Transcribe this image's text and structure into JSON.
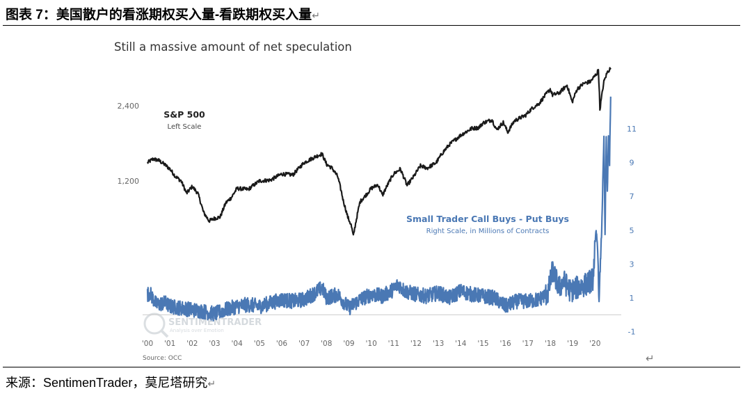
{
  "figure_caption": "图表 7：美国散户的看涨期权买入量-看跌期权买入量",
  "return_mark": "↵",
  "source_caption": "来源：SentimenTrader，莫尼塔研究",
  "chart_data": {
    "type": "line",
    "title": "Still a massive amount of net speculation",
    "source": "Source: OCC",
    "watermark": {
      "name": "SENTIMENTRADER",
      "tagline": "Analysis over Emotion"
    },
    "x_axis": {
      "range": [
        2000,
        2020.8
      ],
      "tick_labels": [
        "'00",
        "'01",
        "'02",
        "'03",
        "'04",
        "'05",
        "'06",
        "'07",
        "'08",
        "'09",
        "'10",
        "'11",
        "'12",
        "'13",
        "'14",
        "'15",
        "'16",
        "'17",
        "'18",
        "'19",
        "'20"
      ]
    },
    "left_axis": {
      "scale": "log",
      "range": [
        300,
        3700
      ],
      "ticks": [
        1200,
        2400
      ],
      "tick_labels": [
        "1,200",
        "2,400"
      ]
    },
    "right_axis": {
      "range": [
        -1.7,
        14.5
      ],
      "ticks": [
        -1,
        1,
        3,
        5,
        7,
        9,
        11
      ],
      "tick_labels": [
        "-1",
        "1",
        "3",
        "5",
        "7",
        "9",
        "11"
      ]
    },
    "colors": {
      "sp500": "#1a1a1a",
      "small_trader": "#4a78b4",
      "axis_text": "#666666",
      "zero_line": "#cccccc"
    },
    "series": [
      {
        "name": "S&P 500",
        "sub_label": "Left Scale",
        "axis": "left",
        "x": [
          2000.0,
          2000.25,
          2000.5,
          2000.75,
          2001.0,
          2001.25,
          2001.5,
          2001.75,
          2002.0,
          2002.25,
          2002.5,
          2002.75,
          2003.0,
          2003.25,
          2003.5,
          2003.75,
          2004.0,
          2004.5,
          2005.0,
          2005.5,
          2006.0,
          2006.5,
          2007.0,
          2007.5,
          2007.8,
          2008.0,
          2008.25,
          2008.5,
          2008.75,
          2008.95,
          2009.1,
          2009.2,
          2009.5,
          2009.75,
          2010.0,
          2010.3,
          2010.5,
          2010.8,
          2011.0,
          2011.3,
          2011.6,
          2011.9,
          2012.2,
          2012.5,
          2012.9,
          2013.2,
          2013.5,
          2014.0,
          2014.5,
          2014.8,
          2015.0,
          2015.4,
          2015.6,
          2015.9,
          2016.1,
          2016.4,
          2016.9,
          2017.2,
          2017.5,
          2018.0,
          2018.1,
          2018.4,
          2018.75,
          2018.98,
          2019.2,
          2019.5,
          2019.8,
          2020.1,
          2020.15,
          2020.22,
          2020.4,
          2020.55,
          2020.7
        ],
        "values": [
          1420,
          1470,
          1450,
          1400,
          1340,
          1250,
          1200,
          1070,
          1140,
          1070,
          900,
          830,
          850,
          860,
          980,
          1030,
          1120,
          1110,
          1200,
          1210,
          1280,
          1270,
          1420,
          1500,
          1540,
          1400,
          1350,
          1250,
          1000,
          860,
          800,
          720,
          990,
          1050,
          1120,
          1160,
          1050,
          1190,
          1280,
          1340,
          1150,
          1250,
          1380,
          1350,
          1420,
          1560,
          1680,
          1830,
          1950,
          1960,
          2050,
          2110,
          1920,
          2060,
          1880,
          2090,
          2200,
          2350,
          2450,
          2800,
          2650,
          2700,
          2900,
          2480,
          2800,
          2950,
          3000,
          3250,
          3380,
          2320,
          3000,
          3270,
          3400
        ]
      },
      {
        "name": "Small Trader Call Buys - Put Buys",
        "sub_label": "Right Scale, in Millions of Contracts",
        "axis": "right",
        "x": [
          2000.0,
          2000.1,
          2000.4,
          2000.8,
          2001.0,
          2001.5,
          2002.0,
          2002.5,
          2003.0,
          2003.5,
          2004.0,
          2004.5,
          2005.0,
          2005.5,
          2006.0,
          2006.5,
          2007.0,
          2007.5,
          2007.8,
          2008.0,
          2008.5,
          2009.0,
          2009.5,
          2010.0,
          2010.5,
          2011.0,
          2011.2,
          2011.5,
          2012.0,
          2012.5,
          2013.0,
          2013.5,
          2014.0,
          2014.5,
          2015.0,
          2015.5,
          2016.0,
          2016.5,
          2017.0,
          2017.5,
          2017.9,
          2018.1,
          2018.4,
          2018.6,
          2018.9,
          2019.2,
          2019.6,
          2019.9,
          2020.05,
          2020.12,
          2020.18,
          2020.22,
          2020.3,
          2020.4,
          2020.45,
          2020.5,
          2020.55,
          2020.6,
          2020.65,
          2020.7
        ],
        "values": [
          1.2,
          1.3,
          0.6,
          0.7,
          0.5,
          0.4,
          0.3,
          0.2,
          0.05,
          0.3,
          0.5,
          0.6,
          0.5,
          0.7,
          0.9,
          0.8,
          0.9,
          1.3,
          1.6,
          1.0,
          1.2,
          0.4,
          0.9,
          1.2,
          1.1,
          1.5,
          1.8,
          1.4,
          1.2,
          1.1,
          1.3,
          1.0,
          1.4,
          1.2,
          1.1,
          1.0,
          0.5,
          0.8,
          0.8,
          0.9,
          1.3,
          2.6,
          1.6,
          2.0,
          1.4,
          1.6,
          1.8,
          2.1,
          4.9,
          4.0,
          0.6,
          2.3,
          5.1,
          10.4,
          4.7,
          10.3,
          7.3,
          10.5,
          9.0,
          12.9
        ]
      }
    ]
  }
}
